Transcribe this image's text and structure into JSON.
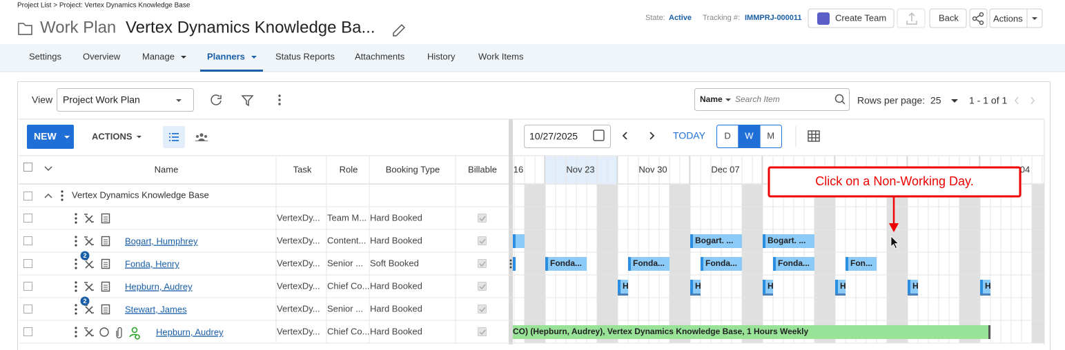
{
  "breadcrumb": "Project List > Project: Vertex Dynamics Knowledge Base",
  "header": {
    "title_prefix": "Work Plan",
    "title": "Vertex Dynamics Knowledge Ba...",
    "state_label": "State:",
    "state": "Active",
    "tracking_label": "Tracking #:",
    "tracking": "IMMPRJ-000011",
    "create_team": "Create Team",
    "back": "Back",
    "actions": "Actions"
  },
  "tabs": [
    {
      "label": "Settings"
    },
    {
      "label": "Overview"
    },
    {
      "label": "Manage",
      "menu": true
    },
    {
      "label": "Planners",
      "menu": true,
      "active": true
    },
    {
      "label": "Status Reports"
    },
    {
      "label": "Attachments"
    },
    {
      "label": "History"
    },
    {
      "label": "Work Items"
    }
  ],
  "toolbar": {
    "view_label": "View",
    "view": "Project Work Plan",
    "search_field": "Name",
    "search_placeholder": "Search Item",
    "rows_label": "Rows per page:",
    "rows_per_page": 25,
    "paging": "1 - 1 of 1"
  },
  "grid": {
    "new": "NEW",
    "actions": "ACTIONS",
    "columns": [
      "Name",
      "Task",
      "Role",
      "Booking Type",
      "Billable"
    ],
    "project": "Vertex Dynamics Knowledge Base",
    "rows": [
      {
        "name": null,
        "task": "VertexDy...",
        "role": "Team M...",
        "booking": "Hard Booked"
      },
      {
        "name": "Bogart, Humphrey",
        "task": "VertexDy...",
        "role": "Content...",
        "booking": "Hard Booked"
      },
      {
        "name": "Fonda, Henry",
        "badge": 2,
        "task": "VertexDy...",
        "role": "Senior ...",
        "booking": "Soft Booked"
      },
      {
        "name": "Hepburn, Audrey",
        "task": "VertexDy...",
        "role": "Chief Co...",
        "booking": "Hard Booked"
      },
      {
        "name": "Stewart, James",
        "badge": 2,
        "task": "VertexDy...",
        "role": "Senior ...",
        "booking": "Hard Booked"
      },
      {
        "name": "Hepburn, Audrey",
        "extra_icons": true,
        "task": "VertexDy...",
        "role": "Chief Co...",
        "booking": "Hard Booked"
      }
    ]
  },
  "planner": {
    "date": "10/27/2025",
    "today": "TODAY",
    "scales": [
      "D",
      "W",
      "M"
    ],
    "active_scale": "W",
    "weeks": [
      "16",
      "Nov 23",
      "Nov 30",
      "Dec 07",
      null,
      null,
      null,
      "04"
    ],
    "bars": [
      [],
      [
        "Bogart. ...",
        "Bogart. ..."
      ],
      [
        "Fonda...",
        "Fonda...",
        "Fonda...",
        "Fonda...",
        "Fon..."
      ],
      [
        "H",
        "H",
        "H",
        "H",
        "H",
        "H"
      ],
      [],
      [
        "CO) (Hepburn, Audrey), Vertex Dynamics Knowledge Base, 1 Hours Weekly"
      ]
    ]
  },
  "callout": "Click on a Non-Working Day."
}
